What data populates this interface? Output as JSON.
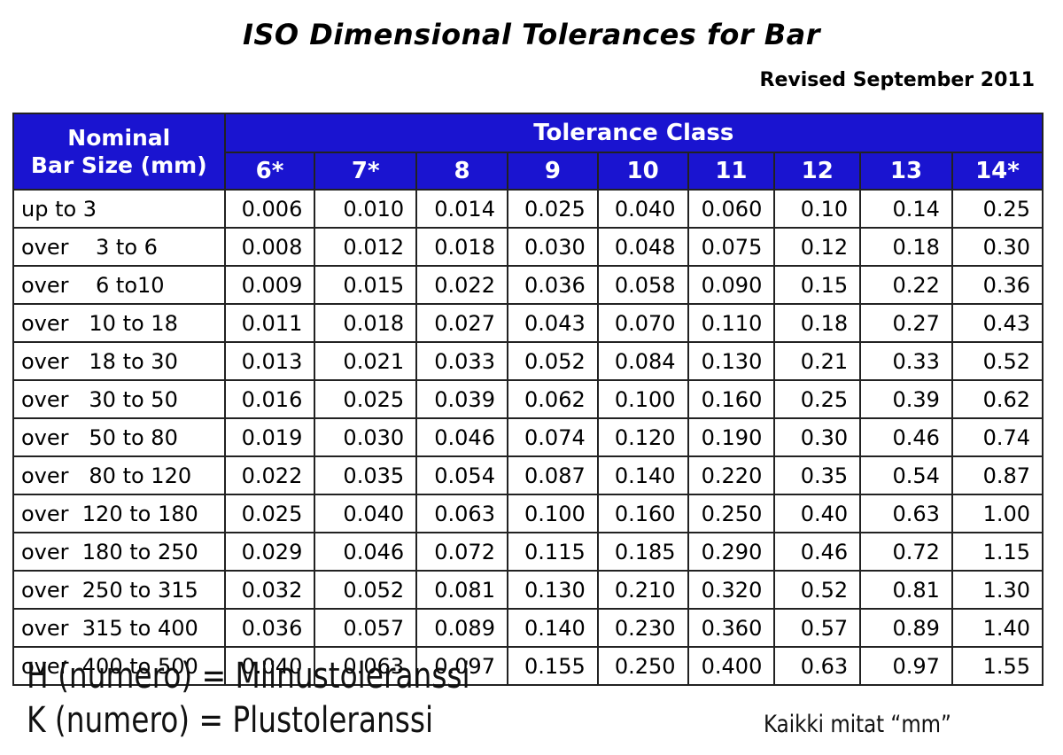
{
  "title": "ISO Dimensional Tolerances for Bar",
  "revised": "Revised September 2011",
  "table": {
    "corner_line1": "Nominal",
    "corner_line2": "Bar Size (mm)",
    "group_header": "Tolerance Class",
    "columns": [
      "6*",
      "7*",
      "8",
      "9",
      "10",
      "11",
      "12",
      "13",
      "14*"
    ],
    "rows": [
      {
        "label": "up to 3",
        "values": [
          "0.006",
          "0.010",
          "0.014",
          "0.025",
          "0.040",
          "0.060",
          "0.10",
          "0.14",
          "0.25"
        ]
      },
      {
        "label": "over    3 to 6",
        "values": [
          "0.008",
          "0.012",
          "0.018",
          "0.030",
          "0.048",
          "0.075",
          "0.12",
          "0.18",
          "0.30"
        ]
      },
      {
        "label": "over    6 to10",
        "values": [
          "0.009",
          "0.015",
          "0.022",
          "0.036",
          "0.058",
          "0.090",
          "0.15",
          "0.22",
          "0.36"
        ]
      },
      {
        "label": "over   10 to 18",
        "values": [
          "0.011",
          "0.018",
          "0.027",
          "0.043",
          "0.070",
          "0.110",
          "0.18",
          "0.27",
          "0.43"
        ]
      },
      {
        "label": "over   18 to 30",
        "values": [
          "0.013",
          "0.021",
          "0.033",
          "0.052",
          "0.084",
          "0.130",
          "0.21",
          "0.33",
          "0.52"
        ]
      },
      {
        "label": "over   30 to 50",
        "values": [
          "0.016",
          "0.025",
          "0.039",
          "0.062",
          "0.100",
          "0.160",
          "0.25",
          "0.39",
          "0.62"
        ]
      },
      {
        "label": "over   50 to 80",
        "values": [
          "0.019",
          "0.030",
          "0.046",
          "0.074",
          "0.120",
          "0.190",
          "0.30",
          "0.46",
          "0.74"
        ]
      },
      {
        "label": "over   80 to 120",
        "values": [
          "0.022",
          "0.035",
          "0.054",
          "0.087",
          "0.140",
          "0.220",
          "0.35",
          "0.54",
          "0.87"
        ]
      },
      {
        "label": "over  120 to 180",
        "values": [
          "0.025",
          "0.040",
          "0.063",
          "0.100",
          "0.160",
          "0.250",
          "0.40",
          "0.63",
          "1.00"
        ]
      },
      {
        "label": "over  180 to 250",
        "values": [
          "0.029",
          "0.046",
          "0.072",
          "0.115",
          "0.185",
          "0.290",
          "0.46",
          "0.72",
          "1.15"
        ]
      },
      {
        "label": "over  250 to 315",
        "values": [
          "0.032",
          "0.052",
          "0.081",
          "0.130",
          "0.210",
          "0.320",
          "0.52",
          "0.81",
          "1.30"
        ]
      },
      {
        "label": "over  315 to 400",
        "values": [
          "0.036",
          "0.057",
          "0.089",
          "0.140",
          "0.230",
          "0.360",
          "0.57",
          "0.89",
          "1.40"
        ]
      },
      {
        "label": "over  400 to 500",
        "values": [
          "0.040",
          "0.063",
          "0.097",
          "0.155",
          "0.250",
          "0.400",
          "0.63",
          "0.97",
          "1.55"
        ]
      }
    ]
  },
  "notes": {
    "line1": "H (numero) = Miinustoleranssi",
    "line2": "K (numero) = Plustoleranssi",
    "units": "Kaikki mitat “mm”"
  },
  "colors": {
    "header_blue": "#1a14d0",
    "border": "#222222",
    "text": "#000000"
  }
}
